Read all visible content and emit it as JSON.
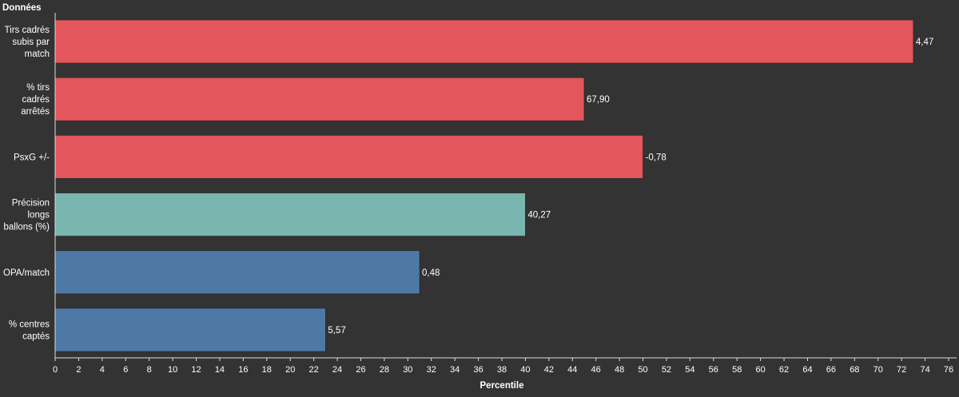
{
  "chart_data": {
    "type": "bar",
    "orientation": "horizontal",
    "header": "Données",
    "xlabel": "Percentile",
    "xlim": [
      0,
      76
    ],
    "xticks": [
      0,
      2,
      4,
      6,
      8,
      10,
      12,
      14,
      16,
      18,
      20,
      22,
      24,
      26,
      28,
      30,
      32,
      34,
      36,
      38,
      40,
      42,
      44,
      46,
      48,
      50,
      52,
      54,
      56,
      58,
      60,
      62,
      64,
      66,
      68,
      70,
      72,
      74,
      76
    ],
    "grid": false,
    "categories": [
      [
        "Tirs cadrés",
        "subis par",
        "match"
      ],
      [
        "% tirs",
        "cadrés",
        "arrêtés"
      ],
      [
        "PsxG +/-"
      ],
      [
        "Précision",
        "longs",
        "ballons (%)"
      ],
      [
        "OPA/match"
      ],
      [
        "% centres",
        "captés"
      ]
    ],
    "values": [
      73,
      45,
      50,
      40,
      31,
      23
    ],
    "value_labels": [
      "4,47",
      "67,90",
      "-0,78",
      "40,27",
      "0,48",
      "5,57"
    ],
    "colors": [
      "#e2565c",
      "#e2565c",
      "#e2565c",
      "#79b6b0",
      "#4e79a7",
      "#4e79a7"
    ]
  }
}
